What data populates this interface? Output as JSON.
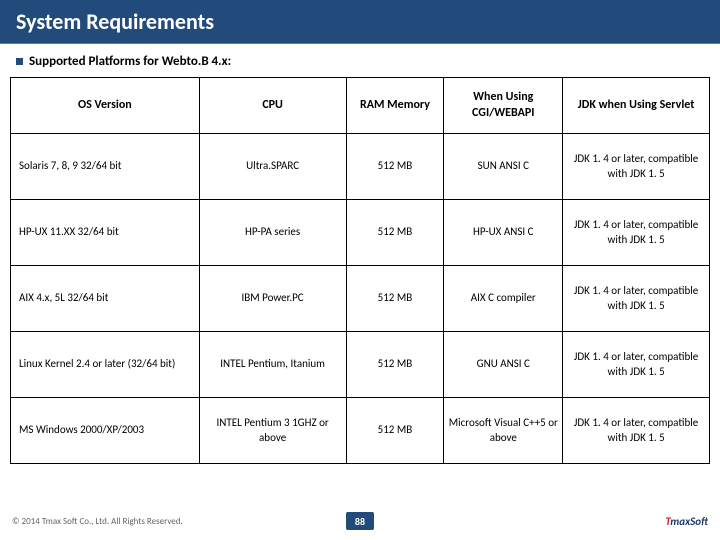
{
  "header": {
    "title": "System Requirements"
  },
  "subtitle": "Supported Platforms for Webto.B 4.x:",
  "table": {
    "columns": {
      "os": "OS Version",
      "cpu": "CPU",
      "ram": "RAM Memory",
      "cgi": "When Using CGI/WEBAPI",
      "jdk": "JDK when Using Servlet"
    },
    "rows": [
      {
        "os": "Solaris 7, 8, 9 32/64 bit",
        "cpu": "Ultra.SPARC",
        "ram": "512 MB",
        "cgi": "SUN ANSI C",
        "jdk": "JDK 1. 4 or later, compatible with JDK 1. 5"
      },
      {
        "os": "HP-UX 11.XX 32/64 bit",
        "cpu": "HP-PA series",
        "ram": "512 MB",
        "cgi": "HP-UX ANSI C",
        "jdk": "JDK 1. 4 or later, compatible with JDK 1. 5"
      },
      {
        "os": "AIX 4.x, 5L 32/64 bit",
        "cpu": "IBM Power.PC",
        "ram": "512 MB",
        "cgi": "AIX C compiler",
        "jdk": "JDK 1. 4 or later, compatible with JDK 1. 5"
      },
      {
        "os": "Linux Kernel 2.4 or later (32/64 bit)",
        "cpu": "INTEL Pentium, Itanium",
        "ram": "512 MB",
        "cgi": "GNU ANSI C",
        "jdk": "JDK 1. 4 or later, compatible with JDK 1. 5"
      },
      {
        "os": "MS Windows 2000/XP/2003",
        "cpu": "INTEL Pentium 3 1GHZ or above",
        "ram": "512 MB",
        "cgi": "Microsoft Visual C++5 or above",
        "jdk": "JDK 1. 4 or later, compatible with JDK 1. 5"
      }
    ]
  },
  "footer": {
    "copyright": "© 2014 Tmax Soft Co., Ltd. All Rights Reserved.",
    "page": "88",
    "logo_t": "T",
    "logo_rest": "maxSoft"
  },
  "style": {
    "header_bg": "#224a7a",
    "header_text": "#ffffff",
    "border_color": "#000000",
    "title_fontsize": 22,
    "subtitle_fontsize": 13,
    "cell_fontsize": 11,
    "header_cell_fontsize": 12,
    "footer_fontsize": 9,
    "logo_red": "#d11b2e",
    "logo_blue": "#173a6a"
  }
}
